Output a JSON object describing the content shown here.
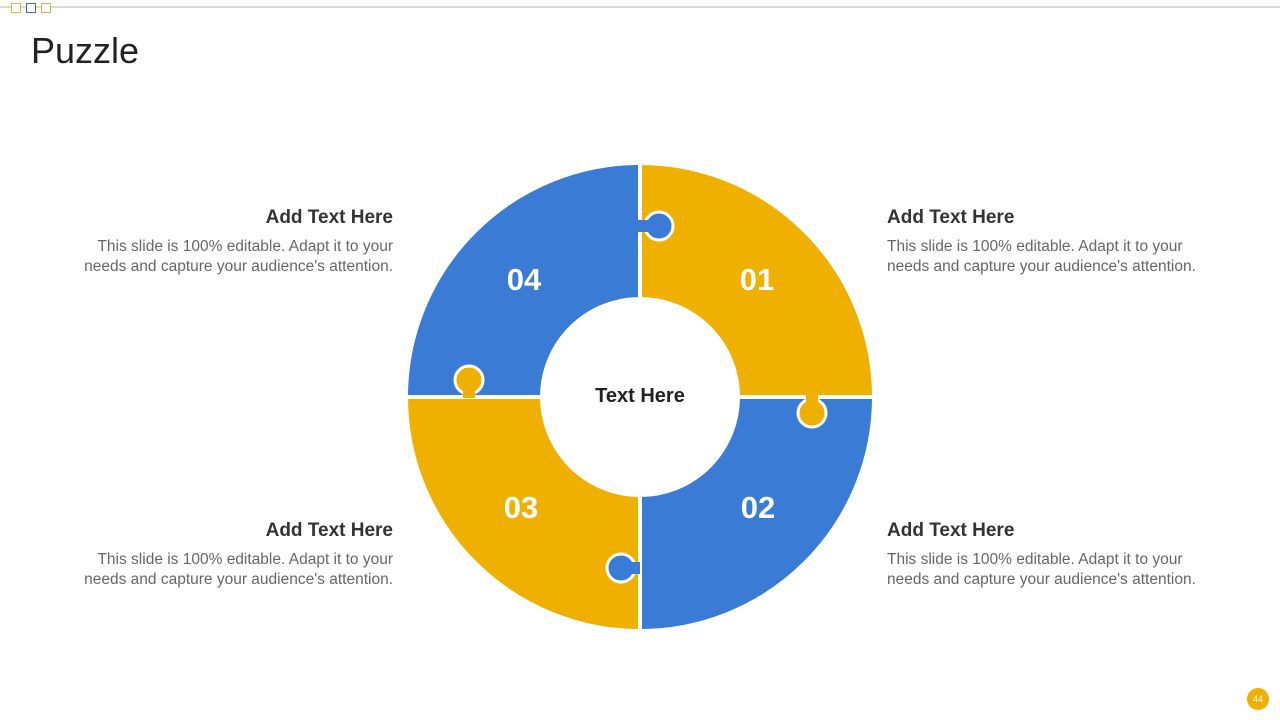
{
  "slide": {
    "title": "Puzzle",
    "page_number": "44"
  },
  "colors": {
    "yellow": "#f0b000",
    "blue": "#3a7bd5"
  },
  "center_label": "Text Here",
  "pieces": [
    {
      "number": "01",
      "color": "yellow"
    },
    {
      "number": "02",
      "color": "blue"
    },
    {
      "number": "03",
      "color": "yellow"
    },
    {
      "number": "04",
      "color": "blue"
    }
  ],
  "blocks": [
    {
      "heading": "Add Text Here",
      "body": "This slide is 100% editable. Adapt it to your needs and capture your audience's attention."
    },
    {
      "heading": "Add Text Here",
      "body": "This slide is 100% editable. Adapt it to your needs and capture your audience's attention."
    },
    {
      "heading": "Add Text Here",
      "body": "This slide is 100% editable. Adapt it to your needs and capture your audience's attention."
    },
    {
      "heading": "Add Text Here",
      "body": "This slide is 100% editable. Adapt it to your needs and capture your audience's attention."
    }
  ]
}
